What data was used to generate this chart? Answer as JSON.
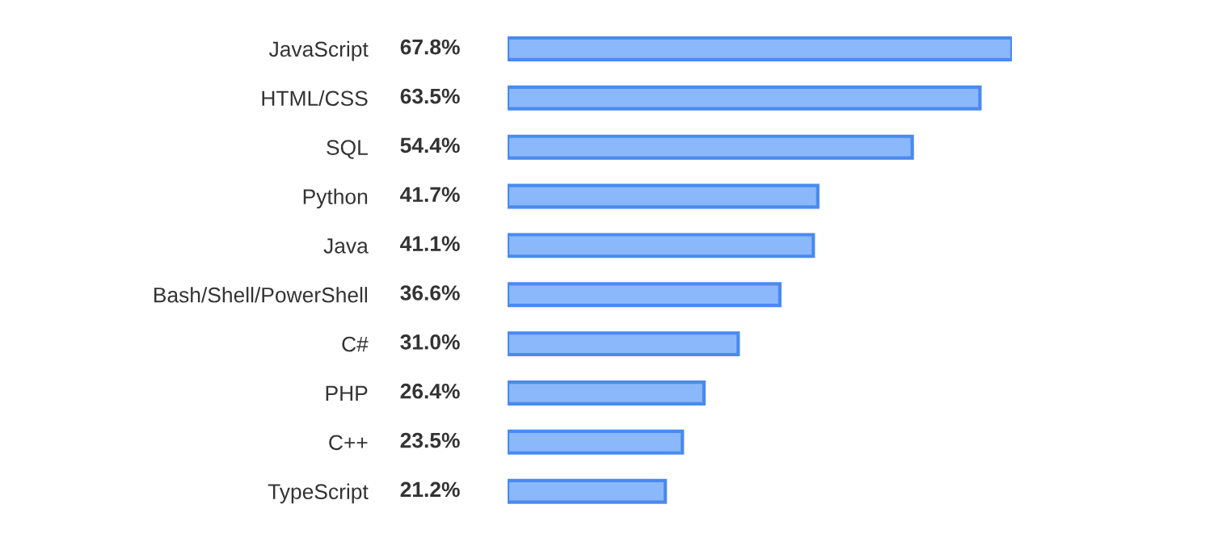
{
  "chart_data": {
    "type": "bar",
    "orientation": "horizontal",
    "categories": [
      "JavaScript",
      "HTML/CSS",
      "SQL",
      "Python",
      "Java",
      "Bash/Shell/PowerShell",
      "C#",
      "PHP",
      "C++",
      "TypeScript"
    ],
    "values": [
      67.8,
      63.5,
      54.4,
      41.7,
      41.1,
      36.6,
      31.0,
      26.4,
      23.5,
      21.2
    ],
    "value_labels": [
      "67.8%",
      "63.5%",
      "54.4%",
      "41.7%",
      "41.1%",
      "36.6%",
      "31.0%",
      "26.4%",
      "23.5%",
      "21.2%"
    ],
    "color": "#8ab8fa",
    "grid": false,
    "legend": false
  }
}
